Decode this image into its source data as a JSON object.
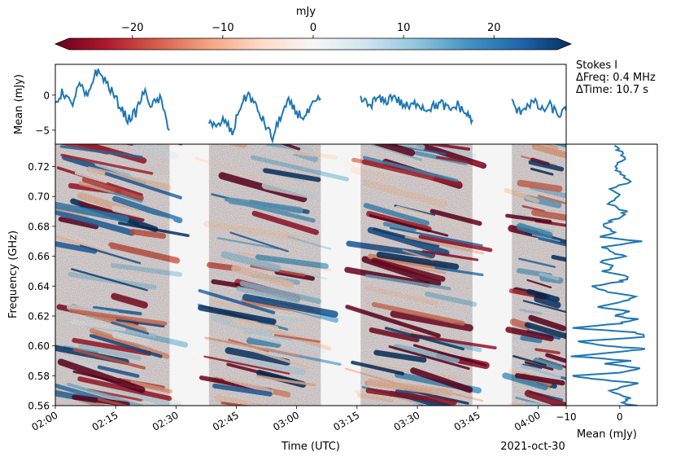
{
  "chart_data": {
    "type": "heatmap",
    "date_label": "2021-oct-30",
    "info": {
      "line1": "Stokes I",
      "line2": "ΔFreq: 0.4 MHz",
      "line3": "ΔTime: 10.7 s"
    },
    "colorbar": {
      "label": "mJy",
      "range": [
        -27,
        27
      ],
      "ticks": [
        -20,
        -10,
        0,
        10,
        20
      ],
      "tick_labels": [
        "−20",
        "−10",
        "0",
        "10",
        "20"
      ],
      "colormap": "RdBu",
      "colors": [
        "#67001f",
        "#b2182b",
        "#d6604d",
        "#f4a582",
        "#fddbc7",
        "#f7f7f7",
        "#d1e5f0",
        "#92c5de",
        "#4393c3",
        "#2166ac",
        "#053061"
      ]
    },
    "spectrogram": {
      "xlabel": "Time (UTC)",
      "ylabel": "Frequency (GHz)",
      "xlim_minutes": [
        0,
        127
      ],
      "ylim": [
        0.56,
        0.735
      ],
      "x_ticks_minutes": [
        0,
        15,
        30,
        45,
        60,
        75,
        90,
        105,
        120
      ],
      "x_tick_labels": [
        "02:00",
        "02:15",
        "02:30",
        "02:45",
        "03:00",
        "03:15",
        "03:30",
        "03:45",
        "04:00"
      ],
      "y_ticks": [
        0.56,
        0.58,
        0.6,
        0.62,
        0.64,
        0.66,
        0.68,
        0.7,
        0.72
      ],
      "y_tick_labels": [
        "0.56",
        "0.58",
        "0.60",
        "0.62",
        "0.64",
        "0.66",
        "0.68",
        "0.70",
        "0.72"
      ],
      "data_segments_minutes": [
        [
          0,
          28.4
        ],
        [
          38.2,
          66
        ],
        [
          75.9,
          103.7
        ],
        [
          113.5,
          127
        ]
      ],
      "gap_color": "#f5f5f5"
    },
    "time_series": {
      "ylabel": "Mean (mJy)",
      "y_ticks": [
        -5,
        0
      ],
      "y_tick_labels": [
        "−5",
        "0"
      ],
      "ylim": [
        -7,
        4.4
      ],
      "color": "#1f77b4",
      "segments": [
        {
          "t": [
            0,
            2,
            4,
            6,
            8,
            10,
            12,
            14,
            16,
            18,
            20,
            22,
            24,
            26,
            28.4
          ],
          "v": [
            -1,
            0.5,
            -1.5,
            1.5,
            -0.5,
            3.5,
            2.5,
            0.5,
            -1.5,
            -3.5,
            -2.5,
            0.5,
            -1.5,
            -0.5,
            -5
          ]
        },
        {
          "t": [
            38.2,
            40,
            42,
            44,
            46,
            48,
            50,
            52,
            54,
            56,
            58,
            60,
            62,
            64,
            66
          ],
          "v": [
            -3.5,
            -4.8,
            -3.5,
            -5.5,
            -1.5,
            0.2,
            -1.8,
            -4,
            -6.2,
            -3,
            -1,
            -2.5,
            -3.2,
            -1.5,
            -0.5
          ]
        },
        {
          "t": [
            75.9,
            78,
            80,
            82,
            84,
            86,
            88,
            90,
            92,
            94,
            96,
            98,
            100,
            102,
            103.7
          ],
          "v": [
            -0.5,
            -1.5,
            -0.5,
            -1,
            0,
            -1.2,
            -1.8,
            -1,
            -2,
            -1.6,
            -1.2,
            -2.2,
            -1.4,
            -2.6,
            -3.5
          ]
        },
        {
          "t": [
            113.5,
            115,
            117,
            119,
            121,
            123,
            125,
            127
          ],
          "v": [
            -1,
            -2.5,
            -1.5,
            -1,
            -2.2,
            -1.5,
            -2.8,
            -2.2
          ]
        }
      ]
    },
    "frequency_profile": {
      "xlabel": "Mean (mJy)",
      "xlim": [
        -10,
        7
      ],
      "x_ticks": [
        -10,
        0
      ],
      "x_tick_labels": [
        "−10",
        "0"
      ],
      "color": "#1f77b4",
      "freq": [
        0.56,
        0.562,
        0.565,
        0.57,
        0.575,
        0.578,
        0.58,
        0.582,
        0.585,
        0.588,
        0.59,
        0.593,
        0.596,
        0.598,
        0.6,
        0.603,
        0.606,
        0.609,
        0.612,
        0.615,
        0.618,
        0.62,
        0.623,
        0.626,
        0.63,
        0.633,
        0.636,
        0.64,
        0.643,
        0.646,
        0.65,
        0.653,
        0.656,
        0.66,
        0.663,
        0.666,
        0.67,
        0.673,
        0.676,
        0.68,
        0.683,
        0.686,
        0.69,
        0.695,
        0.7,
        0.705,
        0.71,
        0.715,
        0.72,
        0.725,
        0.73,
        0.734
      ],
      "mean": [
        3,
        0,
        2,
        -2,
        3,
        -5,
        -9,
        0,
        4,
        -3,
        2,
        -9,
        0,
        5,
        -3,
        -8,
        5,
        3,
        -9,
        0,
        3,
        -1,
        2,
        -4,
        1,
        3,
        -2,
        -5,
        0,
        2,
        -3,
        -1,
        -4,
        1,
        -2,
        -3,
        4,
        -4,
        -1,
        -3,
        -2,
        0,
        1,
        -2,
        0,
        -2,
        2,
        0,
        -1,
        1,
        0,
        -1
      ]
    }
  }
}
